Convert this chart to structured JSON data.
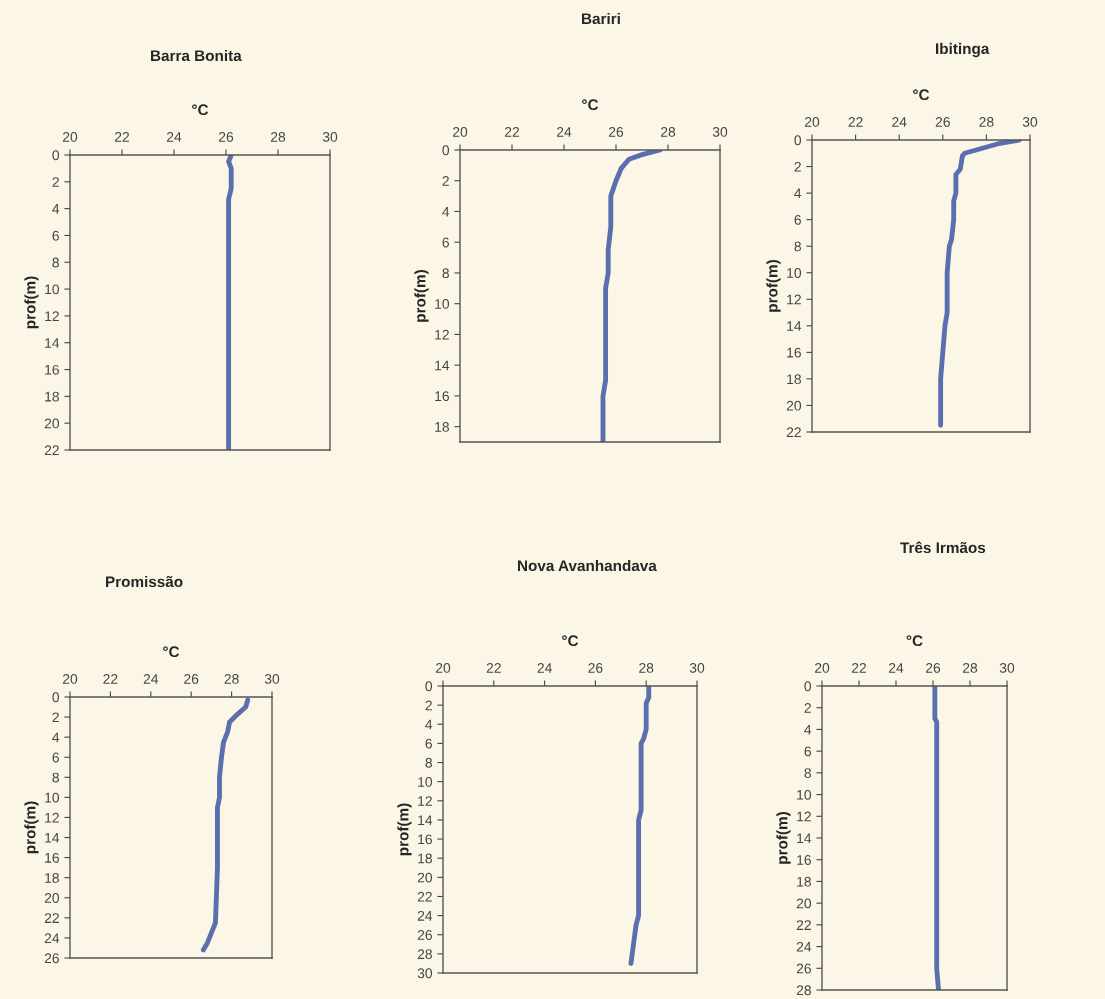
{
  "chart_data": [
    {
      "type": "line",
      "title": "Barra Bonita",
      "xlabel": "°C",
      "ylabel": "prof(m)",
      "color": "#5b6fae",
      "xlim": [
        20,
        30
      ],
      "xticks": [
        20,
        22,
        24,
        26,
        28,
        30
      ],
      "ylim": [
        22,
        0
      ],
      "yticks": [
        0,
        2,
        4,
        6,
        8,
        10,
        12,
        14,
        16,
        18,
        20,
        22
      ],
      "grid": false,
      "marker": "none",
      "x": [
        26.2,
        26.1,
        26.2,
        26.2,
        26.1,
        26.1,
        26.1
      ],
      "values": [
        0,
        0.5,
        1,
        2.5,
        3.3,
        10,
        22
      ]
    },
    {
      "type": "line",
      "title": "Bariri",
      "xlabel": "°C",
      "ylabel": "prof(m)",
      "color": "#5b6fae",
      "xlim": [
        20,
        30
      ],
      "xticks": [
        20,
        22,
        24,
        26,
        28,
        30
      ],
      "ylim": [
        19,
        0
      ],
      "yticks": [
        0,
        2,
        4,
        6,
        8,
        10,
        12,
        14,
        16,
        18
      ],
      "grid": false,
      "marker": "none",
      "x": [
        27.7,
        27.0,
        26.5,
        26.2,
        26.0,
        25.8,
        25.8,
        25.7,
        25.7,
        25.6,
        25.6,
        25.5,
        25.5
      ],
      "values": [
        0,
        0.3,
        0.6,
        1.2,
        2,
        3,
        5,
        6.5,
        8,
        9,
        15,
        16,
        19
      ]
    },
    {
      "type": "line",
      "title": "Ibitinga",
      "xlabel": "°C",
      "ylabel": "prof(m)",
      "color": "#5b6fae",
      "xlim": [
        20,
        30
      ],
      "xticks": [
        20,
        22,
        24,
        26,
        28,
        30
      ],
      "ylim": [
        22,
        0
      ],
      "yticks": [
        0,
        2,
        4,
        6,
        8,
        10,
        12,
        14,
        16,
        18,
        20,
        22
      ],
      "grid": false,
      "marker": "none",
      "x": [
        29.5,
        28.5,
        27.0,
        26.9,
        26.8,
        26.6,
        26.6,
        26.5,
        26.5,
        26.4,
        26.3,
        26.2,
        26.2,
        26.1,
        26.0,
        25.9,
        25.9
      ],
      "values": [
        0,
        0.3,
        1,
        1.2,
        2.2,
        2.6,
        4,
        4.6,
        6,
        7.5,
        8,
        10,
        13,
        14,
        16,
        18,
        21.5
      ]
    },
    {
      "type": "line",
      "title": "Promissão",
      "xlabel": "°C",
      "ylabel": "prof(m)",
      "color": "#5b6fae",
      "xlim": [
        20,
        30
      ],
      "xticks": [
        20,
        22,
        24,
        26,
        28,
        30
      ],
      "ylim": [
        26,
        0
      ],
      "yticks": [
        0,
        2,
        4,
        6,
        8,
        10,
        12,
        14,
        16,
        18,
        20,
        22,
        24,
        26
      ],
      "grid": false,
      "marker": "none",
      "x": [
        28.8,
        28.7,
        28.3,
        27.9,
        27.8,
        27.6,
        27.5,
        27.4,
        27.4,
        27.3,
        27.3,
        27.2,
        27.0,
        26.8,
        26.6
      ],
      "values": [
        0.3,
        1,
        1.7,
        2.5,
        3.5,
        4.5,
        6,
        8,
        10,
        11,
        17,
        22.5,
        23.5,
        24.5,
        25.2
      ]
    },
    {
      "type": "line",
      "title": "Nova Avanhandava",
      "xlabel": "°C",
      "ylabel": "prof(m)",
      "color": "#5b6fae",
      "xlim": [
        20,
        30
      ],
      "xticks": [
        20,
        22,
        24,
        26,
        28,
        30
      ],
      "ylim": [
        30,
        0
      ],
      "yticks": [
        0,
        2,
        4,
        6,
        8,
        10,
        12,
        14,
        16,
        18,
        20,
        22,
        24,
        26,
        28,
        30
      ],
      "grid": false,
      "marker": "none",
      "x": [
        28.1,
        28.1,
        28.0,
        28.0,
        27.9,
        27.8,
        27.8,
        27.7,
        27.7,
        27.6,
        27.5,
        27.4
      ],
      "values": [
        0,
        1.2,
        1.8,
        4.5,
        5.5,
        6,
        13,
        14,
        24,
        25,
        27,
        29
      ]
    },
    {
      "type": "line",
      "title": "Três Irmãos",
      "xlabel": "°C",
      "ylabel": "prof(m)",
      "color": "#5b6fae",
      "xlim": [
        20,
        30
      ],
      "xticks": [
        20,
        22,
        24,
        26,
        28,
        30
      ],
      "ylim": [
        28,
        0
      ],
      "yticks": [
        0,
        2,
        4,
        6,
        8,
        10,
        12,
        14,
        16,
        18,
        20,
        22,
        24,
        26,
        28
      ],
      "grid": false,
      "marker": "none",
      "x": [
        26.1,
        26.1,
        26.2,
        26.2,
        26.3
      ],
      "values": [
        0,
        3,
        3.3,
        26,
        28
      ]
    }
  ]
}
